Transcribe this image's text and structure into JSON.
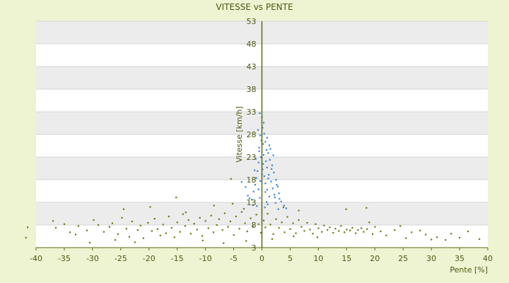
{
  "chart_data": {
    "type": "scatter",
    "title": "VITESSE vs PENTE",
    "xlabel": "Pente [%]",
    "ylabel": "Vitesse [km/h]",
    "xlim": [
      -40,
      40
    ],
    "ylim": [
      3,
      53
    ],
    "x_ticks": [
      -40,
      -35,
      -30,
      -25,
      -20,
      -15,
      -10,
      -5,
      0,
      5,
      10,
      15,
      20,
      25,
      30,
      35,
      40
    ],
    "y_ticks": [
      3,
      8,
      13,
      18,
      23,
      28,
      33,
      38,
      43,
      48,
      53
    ],
    "grid": true,
    "legend": "none",
    "colors": {
      "background": "#eef3d2",
      "plot_band_light": "#ffffff",
      "plot_band_dark": "#ececec",
      "axis": "#5a6b12",
      "text": "#4a5a10",
      "series_low": "#6b7a10",
      "series_high": "#3a86d4"
    },
    "series": [
      {
        "color": "#3a86d4",
        "points": [
          [
            0.1,
            29.5
          ],
          [
            0.4,
            28.2
          ],
          [
            -0.3,
            27.8
          ],
          [
            0.6,
            26.4
          ],
          [
            0.2,
            25.9
          ],
          [
            -0.5,
            25.1
          ],
          [
            0.8,
            24.6
          ],
          [
            1.1,
            23.9
          ],
          [
            0.3,
            23.5
          ],
          [
            -0.2,
            23.0
          ],
          [
            1.4,
            22.4
          ],
          [
            0.7,
            22.1
          ],
          [
            -0.6,
            21.8
          ],
          [
            1.8,
            21.2
          ],
          [
            0.9,
            20.7
          ],
          [
            0.1,
            20.3
          ],
          [
            -0.8,
            19.9
          ],
          [
            2.1,
            19.6
          ],
          [
            1.2,
            19.1
          ],
          [
            0.4,
            18.8
          ],
          [
            -1.0,
            18.4
          ],
          [
            2.5,
            18.0
          ],
          [
            1.6,
            17.6
          ],
          [
            0.6,
            17.2
          ],
          [
            -1.2,
            16.9
          ],
          [
            2.8,
            16.5
          ],
          [
            1.9,
            16.1
          ],
          [
            0.9,
            15.8
          ],
          [
            -1.5,
            15.4
          ],
          [
            3.0,
            15.0
          ],
          [
            2.2,
            14.7
          ],
          [
            1.3,
            14.3
          ],
          [
            -0.4,
            14.0
          ],
          [
            -1.8,
            13.6
          ],
          [
            3.4,
            13.2
          ],
          [
            2.4,
            12.9
          ],
          [
            1.0,
            12.6
          ],
          [
            -0.9,
            12.2
          ],
          [
            0.5,
            11.9
          ],
          [
            2.9,
            11.5
          ],
          [
            -2.2,
            13.9
          ],
          [
            -1.6,
            12.4
          ],
          [
            1.5,
            24.8
          ],
          [
            -0.1,
            26.7
          ],
          [
            0.3,
            30.6
          ],
          [
            -0.7,
            29.0
          ],
          [
            -2.9,
            16.4
          ],
          [
            -3.6,
            17.5
          ],
          [
            0.0,
            31.8
          ],
          [
            -0.4,
            32.7
          ],
          [
            0.9,
            27.3
          ],
          [
            1.7,
            20.4
          ],
          [
            2.6,
            16.9
          ],
          [
            -1.1,
            22.6
          ],
          [
            0.2,
            21.5
          ],
          [
            1.1,
            18.3
          ],
          [
            -0.3,
            17.7
          ],
          [
            0.6,
            15.3
          ],
          [
            3.9,
            12.3
          ],
          [
            4.3,
            11.7
          ],
          [
            2.0,
            23.4
          ],
          [
            -0.5,
            24.3
          ],
          [
            1.3,
            25.6
          ],
          [
            0.0,
            19.2
          ],
          [
            -1.3,
            20.1
          ],
          [
            2.3,
            14.1
          ],
          [
            3.1,
            13.8
          ],
          [
            -2.5,
            14.5
          ],
          [
            0.8,
            13.1
          ],
          [
            -0.6,
            15.9
          ]
        ]
      },
      {
        "color": "#6b7a10",
        "points": [
          [
            -41.5,
            7.5
          ],
          [
            -41.8,
            5.2
          ],
          [
            -37.0,
            8.9
          ],
          [
            -36.5,
            7.4
          ],
          [
            -35.0,
            8.2
          ],
          [
            -34.0,
            6.4
          ],
          [
            -33.0,
            5.9
          ],
          [
            -32.5,
            7.8
          ],
          [
            -31.0,
            6.8
          ],
          [
            -30.5,
            4.1
          ],
          [
            -29.8,
            9.1
          ],
          [
            -29.0,
            8.0
          ],
          [
            -28.0,
            6.5
          ],
          [
            -27.0,
            7.6
          ],
          [
            -26.5,
            8.4
          ],
          [
            -25.5,
            6.0
          ],
          [
            -24.8,
            9.6
          ],
          [
            -24.0,
            7.2
          ],
          [
            -23.5,
            5.4
          ],
          [
            -23.0,
            8.8
          ],
          [
            -22.0,
            6.9
          ],
          [
            -21.5,
            7.9
          ],
          [
            -21.0,
            5.1
          ],
          [
            -20.2,
            8.5
          ],
          [
            -19.5,
            6.7
          ],
          [
            -19.0,
            9.4
          ],
          [
            -18.5,
            7.1
          ],
          [
            -18.0,
            5.7
          ],
          [
            -17.5,
            8.1
          ],
          [
            -17.0,
            6.2
          ],
          [
            -16.5,
            9.9
          ],
          [
            -16.0,
            7.4
          ],
          [
            -15.5,
            5.3
          ],
          [
            -15.0,
            8.6
          ],
          [
            -14.5,
            6.5
          ],
          [
            -14.0,
            10.4
          ],
          [
            -13.6,
            7.8
          ],
          [
            -13.0,
            9.1
          ],
          [
            -12.6,
            6.1
          ],
          [
            -12.0,
            8.3
          ],
          [
            -11.5,
            7.0
          ],
          [
            -11.0,
            9.6
          ],
          [
            -10.6,
            5.6
          ],
          [
            -10.0,
            8.9
          ],
          [
            -9.5,
            7.3
          ],
          [
            -9.0,
            10.1
          ],
          [
            -8.6,
            6.4
          ],
          [
            -8.0,
            8.0
          ],
          [
            -7.6,
            9.3
          ],
          [
            -7.0,
            6.9
          ],
          [
            -6.6,
            10.6
          ],
          [
            -6.0,
            7.6
          ],
          [
            -5.6,
            8.8
          ],
          [
            -5.0,
            5.8
          ],
          [
            -4.6,
            9.9
          ],
          [
            -4.0,
            7.2
          ],
          [
            -3.6,
            10.9
          ],
          [
            -3.0,
            8.4
          ],
          [
            -2.6,
            6.6
          ],
          [
            -2.0,
            9.5
          ],
          [
            -1.6,
            7.7
          ],
          [
            -1.0,
            10.3
          ],
          [
            -0.6,
            8.2
          ],
          [
            -0.2,
            6.3
          ],
          [
            0.3,
            9.0
          ],
          [
            0.6,
            7.5
          ],
          [
            1.0,
            10.5
          ],
          [
            1.5,
            8.1
          ],
          [
            2.0,
            6.0
          ],
          [
            2.5,
            9.3
          ],
          [
            3.0,
            7.4
          ],
          [
            3.5,
            8.6
          ],
          [
            4.0,
            6.4
          ],
          [
            4.5,
            9.8
          ],
          [
            5.0,
            7.1
          ],
          [
            5.5,
            8.4
          ],
          [
            6.0,
            6.2
          ],
          [
            6.5,
            9.1
          ],
          [
            7.0,
            7.6
          ],
          [
            7.5,
            6.7
          ],
          [
            8.0,
            8.5
          ],
          [
            8.5,
            7.0
          ],
          [
            9.0,
            6.1
          ],
          [
            9.5,
            8.2
          ],
          [
            10.0,
            7.3
          ],
          [
            10.6,
            6.5
          ],
          [
            11.0,
            7.9
          ],
          [
            11.6,
            6.9
          ],
          [
            12.0,
            7.5
          ],
          [
            12.6,
            6.3
          ],
          [
            13.0,
            7.2
          ],
          [
            13.6,
            6.7
          ],
          [
            14.0,
            7.8
          ],
          [
            14.6,
            6.4
          ],
          [
            15.0,
            7.0
          ],
          [
            15.6,
            6.8
          ],
          [
            16.0,
            7.4
          ],
          [
            16.6,
            6.2
          ],
          [
            17.0,
            6.9
          ],
          [
            17.6,
            7.3
          ],
          [
            18.0,
            6.5
          ],
          [
            18.6,
            7.1
          ],
          [
            19.0,
            8.6
          ],
          [
            19.6,
            6.0
          ],
          [
            20.0,
            7.6
          ],
          [
            21.0,
            6.6
          ],
          [
            22.0,
            5.7
          ],
          [
            23.5,
            6.9
          ],
          [
            24.5,
            7.8
          ],
          [
            25.5,
            5.1
          ],
          [
            26.5,
            6.4
          ],
          [
            28.0,
            6.8
          ],
          [
            29.0,
            5.9
          ],
          [
            30.0,
            4.8
          ],
          [
            31.0,
            5.3
          ],
          [
            32.5,
            4.7
          ],
          [
            33.5,
            6.1
          ],
          [
            35.0,
            5.2
          ],
          [
            36.5,
            6.6
          ],
          [
            38.5,
            4.9
          ],
          [
            -13.5,
            10.8
          ],
          [
            -24.5,
            11.5
          ],
          [
            -19.8,
            12.0
          ],
          [
            -8.5,
            12.3
          ],
          [
            -5.2,
            12.7
          ],
          [
            -3.2,
            11.6
          ],
          [
            3.8,
            11.9
          ],
          [
            6.5,
            11.2
          ],
          [
            14.9,
            11.5
          ],
          [
            18.5,
            11.8
          ],
          [
            -15.2,
            14.1
          ],
          [
            -5.5,
            18.2
          ],
          [
            -10.5,
            4.6
          ],
          [
            -6.8,
            4.0
          ],
          [
            -2.8,
            4.5
          ],
          [
            1.8,
            4.9
          ],
          [
            5.6,
            5.5
          ],
          [
            9.8,
            5.3
          ],
          [
            -26.0,
            4.7
          ],
          [
            -22.5,
            4.2
          ]
        ]
      }
    ]
  }
}
